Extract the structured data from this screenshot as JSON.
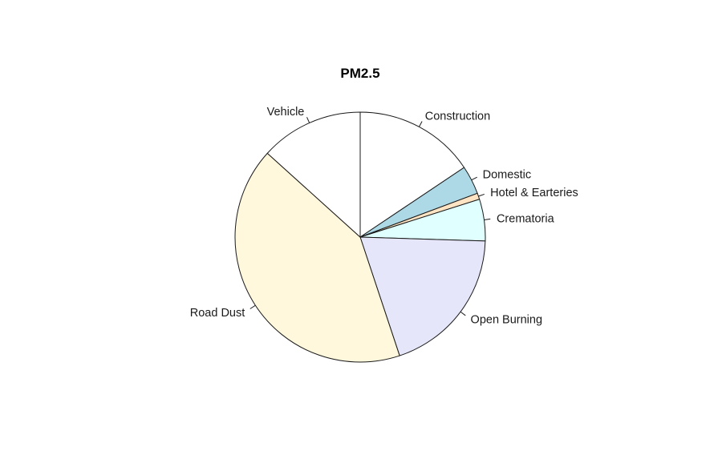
{
  "chart_data": {
    "type": "pie",
    "title": "PM2.5",
    "direction": "clockwise",
    "start": "12 o'clock",
    "slices": [
      {
        "label": "Construction",
        "value": 15.6,
        "color": "#ffffff"
      },
      {
        "label": "Domestic",
        "value": 3.7,
        "color": "#add8e6"
      },
      {
        "label": "Hotel & Earteries",
        "value": 0.8,
        "color": "#ffe4c4"
      },
      {
        "label": "Crematoria",
        "value": 5.4,
        "color": "#e0ffff"
      },
      {
        "label": "Open Burning",
        "value": 19.4,
        "color": "#e6e6fa"
      },
      {
        "label": "Road Dust",
        "value": 41.8,
        "color": "#fff8dc"
      },
      {
        "label": "Vehicle",
        "value": 13.3,
        "color": "#ffffff"
      }
    ]
  }
}
